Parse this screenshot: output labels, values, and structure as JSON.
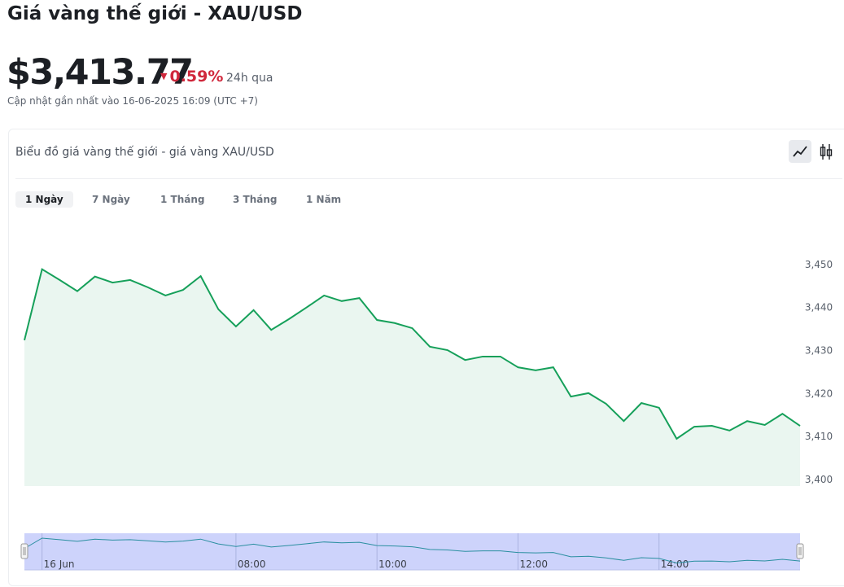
{
  "header": {
    "title": "Giá vàng thế giới - XAU/USD",
    "price": "$3,413.77",
    "change": "0.59%",
    "period": "24h qua",
    "updated": "Cập nhật gần nhất vào 16-06-2025 16:09 (UTC +7)"
  },
  "card": {
    "title": "Biểu đồ giá vàng thế giới - giá vàng XAU/USD",
    "tabs": [
      "1 Ngày",
      "7 Ngày",
      "1 Tháng",
      "3 Tháng",
      "1 Năm"
    ]
  },
  "chart_data": {
    "type": "area",
    "categories": [
      null,
      "16 Jun",
      null,
      null,
      null,
      null,
      null,
      null,
      null,
      null,
      null,
      null,
      "08:00",
      null,
      null,
      null,
      null,
      null,
      null,
      null,
      "10:00",
      null,
      null,
      null,
      null,
      null,
      null,
      null,
      "12:00",
      null,
      null,
      null,
      null,
      null,
      null,
      null,
      "14:00",
      null,
      null,
      null,
      null,
      null,
      null,
      null,
      null
    ],
    "series": [
      {
        "color": "#16a05a",
        "values": [
          3432.4,
          3448.9,
          3446.4,
          3443.8,
          3447.2,
          3445.8,
          3446.4,
          3444.7,
          3442.8,
          3444.1,
          3447.3,
          3439.6,
          3435.6,
          3439.4,
          3434.8,
          3437.3,
          3440.0,
          3442.8,
          3441.5,
          3442.2,
          3437.1,
          3436.4,
          3435.2,
          3430.9,
          3430.1,
          3427.8,
          3428.6,
          3428.6,
          3426.1,
          3425.4,
          3426.1,
          3419.3,
          3420.1,
          3417.6,
          3413.6,
          3417.8,
          3416.7,
          3409.5,
          3412.3,
          3412.5,
          3411.4,
          3413.6,
          3412.7,
          3415.3,
          3412.5
        ]
      }
    ],
    "ylim": [
      3398.5,
      3456.6
    ],
    "yticks": [
      {
        "value": 3400,
        "label": "3,400"
      },
      {
        "value": 3410,
        "label": "3,410"
      },
      {
        "value": 3420,
        "label": "3,420"
      },
      {
        "value": 3430,
        "label": "3,430"
      },
      {
        "value": 3440,
        "label": "3,440"
      },
      {
        "value": 3450,
        "label": "3,450"
      }
    ]
  }
}
